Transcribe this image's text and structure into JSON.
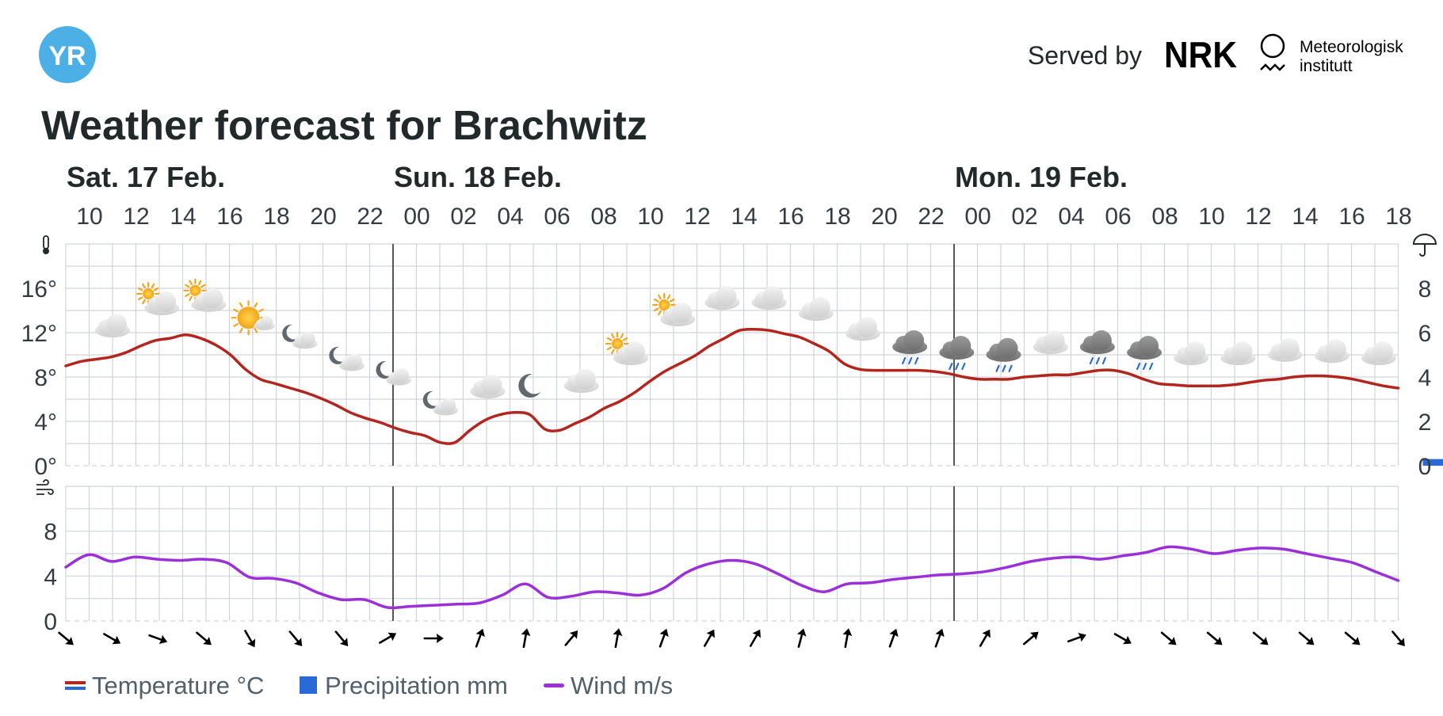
{
  "header": {
    "logo_text": "YR",
    "served_by": "Served by",
    "partner_logo": "NRK",
    "met_line1": "Meteorologisk",
    "met_line2": "institutt",
    "title": "Weather forecast for Brachwitz"
  },
  "colors": {
    "logo_blue": "#4cb0e7",
    "temperature": "#b3261e",
    "precipitation": "#2a6ad6",
    "wind": "#9b30d9",
    "grid": "#cfd4db",
    "divider": "#444444",
    "text": "#21292b"
  },
  "chart_data": {
    "type": "line",
    "days": [
      {
        "label": "Sat. 17 Feb.",
        "start_index": 0
      },
      {
        "label": "Sun. 18 Feb.",
        "start_index": 14
      },
      {
        "label": "Mon. 19 Feb.",
        "start_index": 38
      }
    ],
    "hour_labels": [
      "10",
      "12",
      "14",
      "16",
      "18",
      "20",
      "22",
      "00",
      "02",
      "04",
      "06",
      "08",
      "10",
      "12",
      "14",
      "16",
      "18",
      "20",
      "22",
      "00",
      "02",
      "04",
      "06",
      "08",
      "10",
      "12",
      "14",
      "16",
      "18"
    ],
    "temperature": {
      "name": "Temperature °C",
      "ylim": [
        0,
        20
      ],
      "ticks": [
        0,
        4,
        8,
        12,
        16
      ],
      "tick_labels": [
        "0°",
        "4°",
        "8°",
        "12°",
        "16°"
      ],
      "values": [
        9.0,
        9.4,
        9.6,
        9.8,
        10.2,
        10.8,
        11.3,
        11.5,
        11.8,
        11.5,
        10.9,
        10.0,
        8.7,
        7.8,
        7.4,
        7.0,
        6.6,
        6.1,
        5.5,
        4.8,
        4.3,
        3.9,
        3.4,
        3.0,
        2.7,
        2.1,
        2.1,
        3.2,
        4.1,
        4.6,
        4.8,
        4.6,
        3.3,
        3.2,
        3.8,
        4.4,
        5.2,
        5.8,
        6.6,
        7.6,
        8.5,
        9.2,
        9.9,
        10.8,
        11.5,
        12.2,
        12.3,
        12.2,
        11.9,
        11.6,
        11.0,
        10.3,
        9.2,
        8.7,
        8.6,
        8.6,
        8.6,
        8.6,
        8.5,
        8.3,
        8.0,
        7.8,
        7.8,
        7.8,
        8.0,
        8.1,
        8.2,
        8.2,
        8.4,
        8.6,
        8.6,
        8.3,
        7.8,
        7.4,
        7.3,
        7.2,
        7.2,
        7.2,
        7.3,
        7.5,
        7.7,
        7.8,
        8.0,
        8.1,
        8.1,
        8.0,
        7.8,
        7.5,
        7.2,
        7.0
      ]
    },
    "precipitation": {
      "name": "Precipitation mm",
      "ylim": [
        0,
        10
      ],
      "ticks": [
        0,
        2,
        4,
        6,
        8
      ],
      "hour_index_start": 22,
      "values": [
        0,
        0,
        0,
        0,
        0,
        0,
        0,
        0,
        0,
        0,
        0,
        0,
        0,
        0,
        0,
        0,
        0,
        0,
        0,
        0,
        0,
        0,
        0,
        0,
        0,
        0,
        0,
        0,
        0,
        0,
        0,
        0,
        0,
        0,
        0,
        0,
        0.3,
        0.4,
        0.2,
        0.2,
        0.2,
        0.2,
        0,
        0,
        0,
        0,
        0.1,
        0.5,
        0.9,
        0.6,
        0,
        0,
        0,
        0,
        0,
        0,
        0,
        0,
        0,
        0
      ]
    },
    "wind": {
      "name": "Wind m/s",
      "ylim": [
        0,
        12
      ],
      "ticks": [
        0,
        4,
        8
      ],
      "values": [
        4.8,
        5.9,
        5.3,
        5.7,
        5.5,
        5.4,
        5.5,
        5.2,
        3.9,
        3.8,
        3.4,
        2.5,
        1.9,
        1.9,
        1.2,
        1.3,
        1.4,
        1.5,
        1.6,
        2.3,
        3.3,
        2.1,
        2.2,
        2.6,
        2.5,
        2.3,
        2.9,
        4.3,
        5.1,
        5.4,
        5.1,
        4.2,
        3.2,
        2.6,
        3.3,
        3.4,
        3.7,
        3.9,
        4.1,
        4.2,
        4.4,
        4.8,
        5.3,
        5.6,
        5.7,
        5.5,
        5.8,
        6.1,
        6.6,
        6.4,
        6.0,
        6.3,
        6.5,
        6.4,
        6.0,
        5.6,
        5.2,
        4.4,
        3.6
      ]
    },
    "wind_directions": [
      130,
      120,
      110,
      130,
      150,
      140,
      140,
      60,
      90,
      20,
      10,
      40,
      10,
      20,
      30,
      30,
      15,
      10,
      20,
      20,
      30,
      50,
      70,
      120,
      130,
      130,
      130,
      130,
      130,
      140
    ],
    "weather_icons": [
      "cloudy",
      "partly-sunny",
      "partly-sunny",
      "sun-cloud",
      "night-cloud",
      "night-cloud",
      "night-cloud",
      "night-cloud",
      "cloudy",
      "moon",
      "cloudy",
      "partly-sunny",
      "partly-sunny",
      "cloudy",
      "cloudy",
      "cloudy",
      "cloudy",
      "rain",
      "rain",
      "rain",
      "cloudy",
      "rain",
      "rain",
      "cloudy",
      "cloudy",
      "cloudy",
      "cloudy",
      "cloudy"
    ],
    "weather_icon_levels": [
      12.5,
      14.5,
      14.8,
      13.2,
      11.5,
      9.5,
      8.2,
      5.5,
      7.0,
      7.2,
      7.5,
      10.0,
      13.5,
      15.0,
      15.0,
      14.0,
      12.2,
      11.0,
      10.5,
      10.3,
      11.0,
      11.0,
      10.5,
      10.0,
      10.0,
      10.3,
      10.2,
      10.0
    ],
    "legend": [
      {
        "label": "Temperature °C",
        "key": "temperature"
      },
      {
        "label": "Precipitation mm",
        "key": "precipitation"
      },
      {
        "label": "Wind m/s",
        "key": "wind"
      }
    ]
  }
}
